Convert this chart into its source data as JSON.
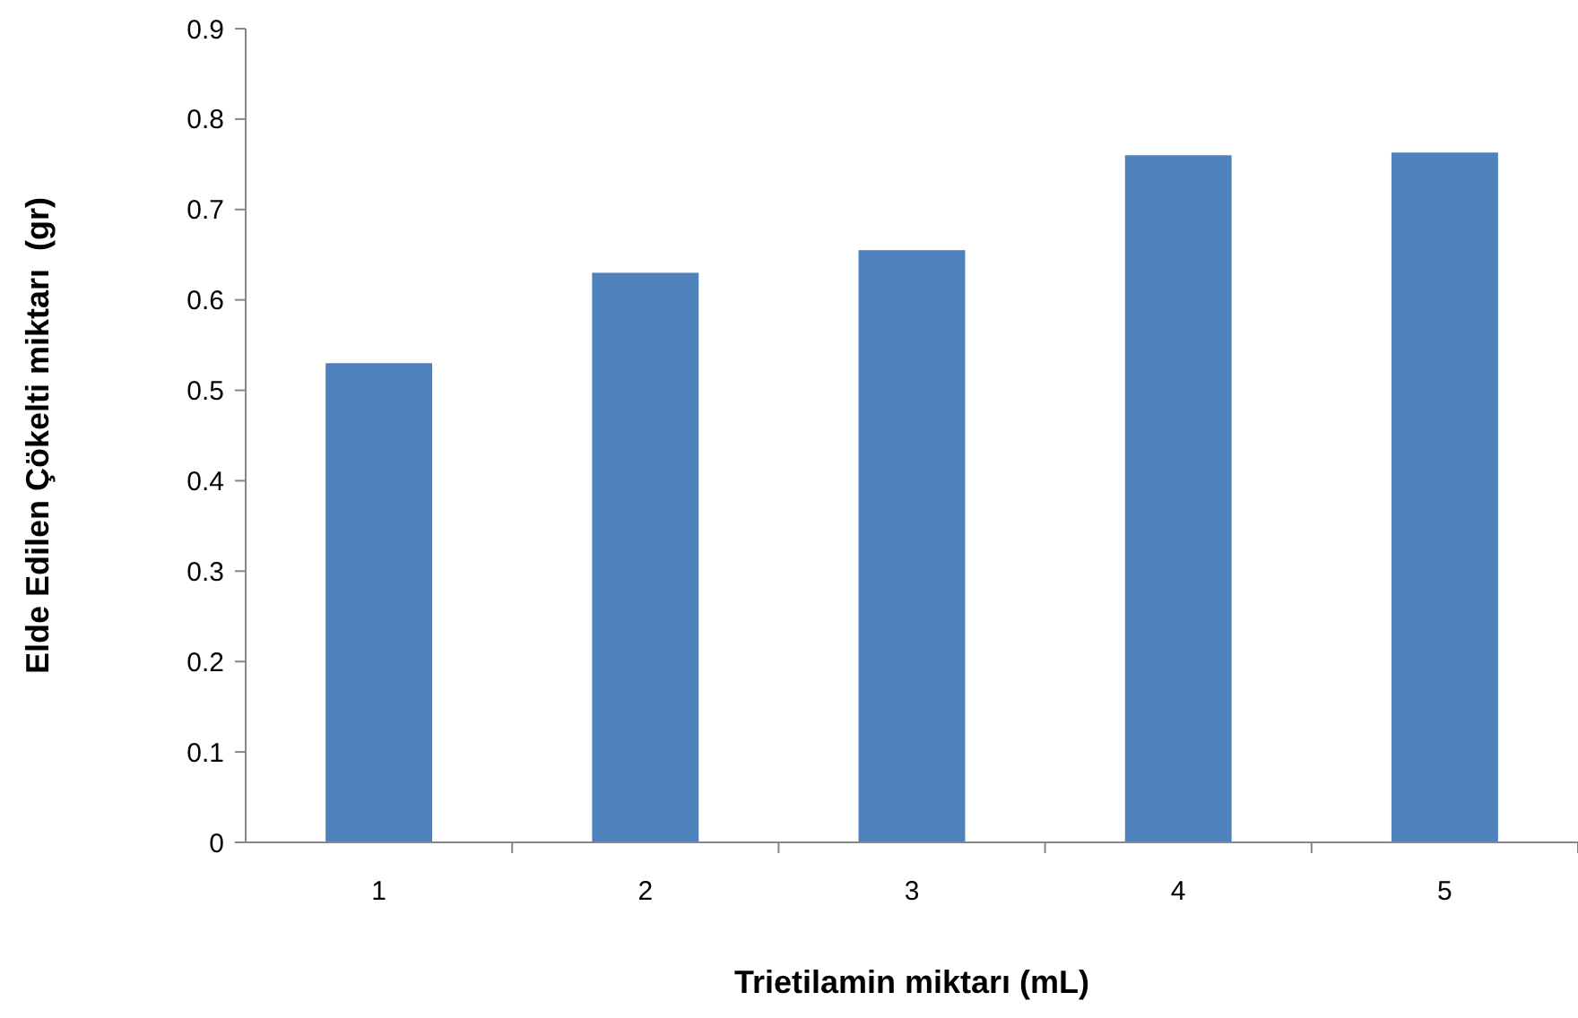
{
  "chart_data": {
    "type": "bar",
    "xlabel": "Trietilamin miktarı (mL)",
    "ylabel": "Elde Edilen Çökelti miktarı  (gr)",
    "categories": [
      "1",
      "2",
      "3",
      "4",
      "5"
    ],
    "values": [
      0.53,
      0.63,
      0.655,
      0.76,
      0.763
    ],
    "color": "#4f81bd",
    "ylim": [
      0,
      0.9
    ],
    "yticks": [
      0,
      0.1,
      0.2,
      0.3,
      0.4,
      0.5,
      0.6,
      0.7,
      0.8,
      0.9
    ],
    "grid": false
  }
}
